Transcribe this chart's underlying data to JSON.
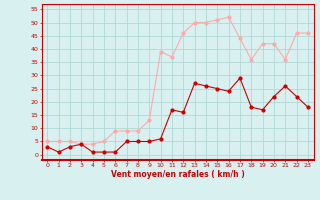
{
  "hours": [
    0,
    1,
    2,
    3,
    4,
    5,
    6,
    7,
    8,
    9,
    10,
    11,
    12,
    13,
    14,
    15,
    16,
    17,
    18,
    19,
    20,
    21,
    22,
    23
  ],
  "wind_avg": [
    3,
    1,
    3,
    4,
    1,
    1,
    1,
    5,
    5,
    5,
    6,
    17,
    16,
    27,
    26,
    25,
    24,
    29,
    18,
    17,
    22,
    26,
    22,
    18
  ],
  "wind_gust": [
    5,
    5,
    5,
    4,
    4,
    5,
    9,
    9,
    9,
    13,
    39,
    37,
    46,
    50,
    50,
    51,
    52,
    44,
    36,
    42,
    42,
    36,
    46,
    46
  ],
  "color_avg": "#cc0000",
  "color_gust": "#ffaaaa",
  "bg_color": "#d8f0f0",
  "grid_color": "#b0d8d8",
  "xlabel": "Vent moyen/en rafales ( km/h )",
  "ylabel_ticks": [
    0,
    5,
    10,
    15,
    20,
    25,
    30,
    35,
    40,
    45,
    50,
    55
  ],
  "ylim": [
    -2,
    57
  ],
  "xlim": [
    -0.5,
    23.5
  ],
  "spine_color": "#cc0000"
}
